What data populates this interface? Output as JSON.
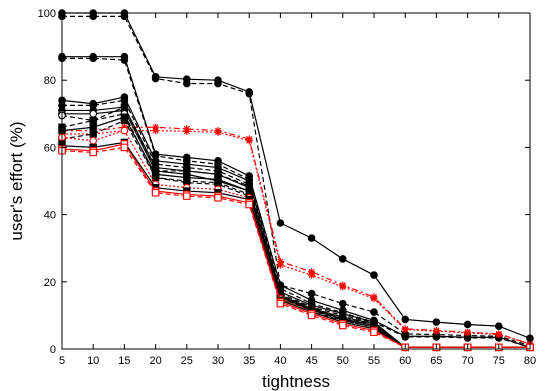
{
  "chart_data": {
    "type": "line",
    "title": "",
    "xlabel": "tightness",
    "ylabel": "user's effort (%)",
    "x": [
      5,
      10,
      15,
      20,
      25,
      30,
      35,
      40,
      45,
      50,
      55,
      60,
      65,
      70,
      75,
      80
    ],
    "xlim": [
      5,
      80
    ],
    "ylim": [
      0,
      100
    ],
    "xticks": [
      "5",
      "10",
      "15",
      "20",
      "25",
      "30",
      "35",
      "40",
      "45",
      "50",
      "55",
      "60",
      "65",
      "70",
      "75",
      "80"
    ],
    "yticks": [
      "0",
      "20",
      "40",
      "60",
      "80",
      "100"
    ],
    "grid": false,
    "legend": "none",
    "series": [
      {
        "color": "#000000",
        "dash": "",
        "marker": "circle",
        "values": [
          100,
          100,
          100,
          81,
          80.3,
          80,
          76.5,
          37.5,
          33,
          26.8,
          22,
          8.8,
          8,
          7.3,
          6.8,
          3.2
        ]
      },
      {
        "color": "#000000",
        "dash": "5,3",
        "marker": "circle",
        "values": [
          99,
          99,
          99,
          80.5,
          79,
          79,
          76,
          19,
          16.5,
          13.5,
          11,
          4.5,
          4.3,
          4,
          3.8,
          1
        ]
      },
      {
        "color": "#000000",
        "dash": "",
        "marker": "circle",
        "values": [
          87,
          87,
          87,
          58,
          57,
          56,
          51.5,
          19,
          14.5,
          11.5,
          8.5,
          3.8,
          3.8,
          3.5,
          3.5,
          0.5
        ]
      },
      {
        "color": "#000000",
        "dash": "5,3",
        "marker": "circle",
        "values": [
          86.5,
          86.5,
          86,
          57.5,
          56,
          55,
          50.5,
          18,
          13.5,
          10.8,
          8,
          3.6,
          3.6,
          3.3,
          3.3,
          0.5
        ]
      },
      {
        "color": "#ff0000",
        "dash": "6,3,2,3",
        "marker": "star",
        "values": [
          65,
          65,
          66,
          66,
          65.5,
          65,
          62.5,
          26,
          23,
          19,
          15.5,
          6,
          5.5,
          5,
          4.5,
          1.5
        ]
      },
      {
        "color": "#ff0000",
        "dash": "2,2",
        "marker": "star",
        "values": [
          64,
          64,
          65,
          65,
          64.8,
          64.5,
          62,
          25,
          22,
          18.5,
          15,
          5.8,
          5.3,
          4.8,
          4.3,
          1.5
        ]
      },
      {
        "color": "#000000",
        "dash": "",
        "marker": "circle",
        "values": [
          74,
          73,
          75,
          56,
          55,
          54,
          50,
          17,
          13,
          10.5,
          8,
          0.5,
          0.5,
          0.5,
          0.5,
          0.5
        ]
      },
      {
        "color": "#000000",
        "dash": "5,3",
        "marker": "circle",
        "values": [
          72.5,
          72.5,
          74,
          55,
          54,
          53,
          49,
          16.5,
          12.5,
          10,
          7.8,
          0.5,
          0.5,
          0.5,
          0.5,
          0.5
        ]
      },
      {
        "color": "#000000",
        "dash": "",
        "marker": "circle",
        "values": [
          71,
          71,
          72,
          54,
          53,
          52,
          48,
          16,
          12,
          9.5,
          7.5,
          0.5,
          0.5,
          0.5,
          0.5,
          0.5
        ]
      },
      {
        "color": "#000000",
        "dash": "",
        "marker": "circle-open",
        "values": [
          70,
          70,
          71,
          53,
          52,
          50,
          47,
          15.5,
          11.5,
          9,
          7,
          0.5,
          0.5,
          0.5,
          0.5,
          0.5
        ]
      },
      {
        "color": "#000000",
        "dash": "5,3",
        "marker": "circle-open",
        "values": [
          69.5,
          68,
          70,
          51,
          49.5,
          49,
          45.5,
          15,
          11,
          8.5,
          6.5,
          0.5,
          0.5,
          0.5,
          0.5,
          0.5
        ]
      },
      {
        "color": "#000000",
        "dash": "5,3",
        "marker": "square",
        "values": [
          66,
          68,
          72,
          53,
          53,
          52,
          48.5,
          16,
          12.5,
          9,
          7.5,
          0.5,
          0.5,
          0.5,
          0.5,
          0.5
        ]
      },
      {
        "color": "#000000",
        "dash": "",
        "marker": "square",
        "values": [
          65,
          66,
          69,
          52,
          51,
          50.5,
          47,
          15.5,
          12,
          8.8,
          7,
          0.5,
          0.5,
          0.5,
          0.5,
          0.5
        ]
      },
      {
        "color": "#000000",
        "dash": "5,3",
        "marker": "square",
        "values": [
          62.5,
          64,
          68,
          51,
          50,
          49.5,
          46,
          15,
          11.5,
          8.5,
          6.5,
          0.5,
          0.5,
          0.5,
          0.5,
          0.5
        ]
      },
      {
        "color": "#ff0000",
        "dash": "2,2",
        "marker": "circle-open",
        "values": [
          63,
          62,
          65,
          49,
          48,
          47.5,
          45,
          15,
          11,
          8,
          6,
          0.5,
          0.5,
          0.5,
          0.5,
          0.5
        ]
      },
      {
        "color": "#000000",
        "dash": "",
        "marker": "square",
        "values": [
          60.5,
          60,
          61.5,
          48,
          47,
          46.5,
          44.5,
          14.5,
          11,
          8,
          6,
          0.5,
          0.5,
          0.5,
          0.5,
          0.5
        ]
      },
      {
        "color": "#ff0000",
        "dash": "",
        "marker": "square-open",
        "values": [
          59.5,
          59,
          61,
          47,
          46,
          45.5,
          43.5,
          14,
          10.5,
          7.5,
          5.5,
          0.5,
          0.5,
          0.5,
          0.5,
          0.5
        ]
      },
      {
        "color": "#ff0000",
        "dash": "5,3",
        "marker": "square-open",
        "values": [
          59,
          58.5,
          60,
          46.5,
          45.5,
          45,
          43,
          13.5,
          10,
          7,
          5,
          0.5,
          0.5,
          0.5,
          0.5,
          0.5
        ]
      }
    ]
  }
}
